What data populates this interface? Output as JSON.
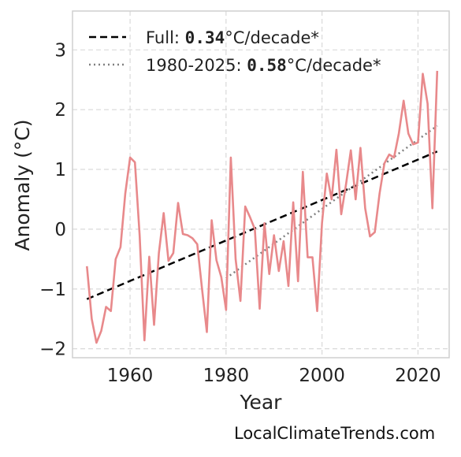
{
  "watermark": "LocalClimateTrends.com",
  "legend": {
    "full": {
      "prefix": "Full: ",
      "value": "0.34",
      "suffix": "°C/decade*"
    },
    "recent": {
      "prefix": "1980-2025: ",
      "value": "0.58",
      "suffix": "°C/decade*"
    }
  },
  "colors": {
    "series": "#e8898b",
    "full_trend": "#000000",
    "recent_trend": "#808080",
    "grid": "#d9d9d9"
  },
  "chart_data": {
    "type": "line",
    "xlabel": "Year",
    "ylabel": "Anomaly (°C)",
    "xlim": [
      1948,
      2026.5
    ],
    "ylim": [
      -2.15,
      3.65
    ],
    "xticks": [
      1960,
      1980,
      2000,
      2020
    ],
    "yticks": [
      -2,
      -1,
      0,
      1,
      2,
      3
    ],
    "xtick_labels": [
      "1960",
      "1980",
      "2000",
      "2020"
    ],
    "ytick_labels": [
      "−2",
      "−1",
      "0",
      "1",
      "2",
      "3"
    ],
    "grid": true,
    "legend_position": "top-left",
    "series": [
      {
        "x": [
          1951,
          1952,
          1953,
          1954,
          1955,
          1956,
          1957,
          1958,
          1959,
          1960,
          1961,
          1962,
          1963,
          1964,
          1965,
          1966,
          1967,
          1968,
          1969,
          1970,
          1971,
          1972,
          1973,
          1974,
          1975,
          1976,
          1977,
          1978,
          1979,
          1980,
          1981,
          1982,
          1983,
          1984,
          1985,
          1986,
          1987,
          1988,
          1989,
          1990,
          1991,
          1992,
          1993,
          1994,
          1995,
          1996,
          1997,
          1998,
          1999,
          2000,
          2001,
          2002,
          2003,
          2004,
          2005,
          2006,
          2007,
          2008,
          2009,
          2010,
          2011,
          2012,
          2013,
          2014,
          2015,
          2016,
          2017,
          2018,
          2019,
          2020,
          2021,
          2022,
          2023,
          2024
        ],
        "y": [
          -0.62,
          -1.5,
          -1.9,
          -1.7,
          -1.3,
          -1.37,
          -0.5,
          -0.3,
          0.6,
          1.2,
          1.12,
          -0.1,
          -1.86,
          -0.46,
          -1.6,
          -0.4,
          0.27,
          -0.53,
          -0.4,
          0.44,
          -0.08,
          -0.1,
          -0.15,
          -0.25,
          -1.0,
          -1.72,
          0.15,
          -0.52,
          -0.8,
          -1.35,
          1.2,
          -0.5,
          -1.2,
          0.38,
          0.2,
          0.0,
          -1.33,
          0.1,
          -0.75,
          -0.1,
          -0.7,
          -0.2,
          -0.95,
          0.45,
          -0.87,
          0.96,
          -0.47,
          -0.47,
          -1.37,
          0.1,
          0.93,
          0.5,
          1.33,
          0.25,
          0.75,
          1.32,
          0.5,
          1.36,
          0.35,
          -0.12,
          -0.05,
          0.6,
          1.1,
          1.25,
          1.2,
          1.6,
          2.15,
          1.6,
          1.42,
          1.45,
          2.6,
          2.1,
          0.35,
          2.65
        ]
      }
    ],
    "trends": [
      {
        "x": [
          1951,
          2024
        ],
        "y": [
          -1.17,
          1.3
        ],
        "style": "dashed"
      },
      {
        "x": [
          1980,
          2024
        ],
        "y": [
          -0.82,
          1.73
        ],
        "style": "dotted"
      }
    ]
  }
}
